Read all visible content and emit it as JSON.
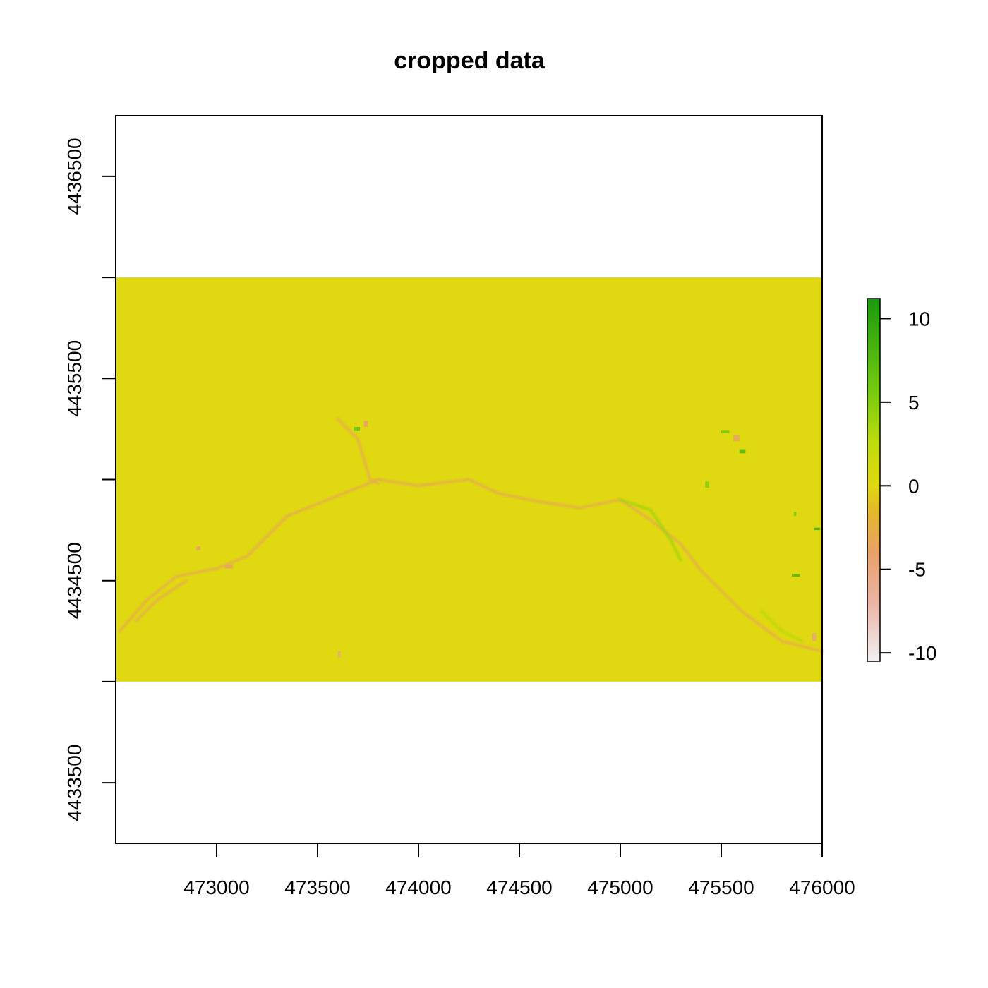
{
  "chart_data": {
    "type": "heatmap",
    "title": "cropped data",
    "xlabel": "",
    "ylabel": "",
    "xlim": [
      472500,
      476000
    ],
    "ylim": [
      4433200,
      4436800
    ],
    "x_ticks": [
      473000,
      473500,
      474000,
      474500,
      475000,
      475500,
      476000
    ],
    "x_tick_labels": [
      "473000",
      "473500",
      "474000",
      "474500",
      "475000",
      "475500",
      "476000"
    ],
    "y_ticks": [
      4433500,
      4434000,
      4434500,
      4435000,
      4435500,
      4436000,
      4436500
    ],
    "y_tick_labels": [
      "4433500",
      "",
      "4434500",
      "",
      "4435500",
      "",
      "4436500"
    ],
    "raster_extent": {
      "x": [
        472500,
        476000
      ],
      "y": [
        4434000,
        4436000
      ]
    },
    "raster_base_value": 0,
    "features": [
      {
        "kind": "channel",
        "value": -3,
        "points": [
          [
            472520,
            4434250
          ],
          [
            472650,
            4434400
          ],
          [
            472800,
            4434520
          ],
          [
            473000,
            4434560
          ],
          [
            473150,
            4434620
          ],
          [
            473350,
            4434820
          ],
          [
            473600,
            4434920
          ],
          [
            473800,
            4435000
          ],
          [
            474000,
            4434970
          ],
          [
            474250,
            4435000
          ],
          [
            474400,
            4434930
          ],
          [
            474600,
            4434890
          ],
          [
            474800,
            4434860
          ],
          [
            475000,
            4434900
          ],
          [
            475150,
            4434800
          ],
          [
            475300,
            4434680
          ],
          [
            475400,
            4434550
          ],
          [
            475600,
            4434350
          ],
          [
            475800,
            4434200
          ],
          [
            476000,
            4434150
          ]
        ]
      },
      {
        "kind": "channel",
        "value": -3,
        "points": [
          [
            473600,
            4435300
          ],
          [
            473700,
            4435200
          ],
          [
            473760,
            4435000
          ],
          [
            473800,
            4434980
          ]
        ]
      },
      {
        "kind": "channel",
        "value": -3,
        "points": [
          [
            472600,
            4434300
          ],
          [
            472700,
            4434400
          ],
          [
            472850,
            4434500
          ]
        ]
      },
      {
        "kind": "channel",
        "value": 4,
        "points": [
          [
            475000,
            4434900
          ],
          [
            475150,
            4434850
          ],
          [
            475250,
            4434700
          ],
          [
            475300,
            4434600
          ]
        ]
      },
      {
        "kind": "channel",
        "value": 3,
        "points": [
          [
            475700,
            4434350
          ],
          [
            475800,
            4434250
          ],
          [
            475900,
            4434200
          ]
        ]
      },
      {
        "kind": "patch",
        "value": 7,
        "x": 473680,
        "y": 4435240,
        "w": 30,
        "h": 20
      },
      {
        "kind": "patch",
        "value": -4,
        "x": 473730,
        "y": 4435260,
        "w": 20,
        "h": 30
      },
      {
        "kind": "patch",
        "value": 6,
        "x": 475500,
        "y": 4435230,
        "w": 40,
        "h": 12
      },
      {
        "kind": "patch",
        "value": 8,
        "x": 475590,
        "y": 4435130,
        "w": 30,
        "h": 20
      },
      {
        "kind": "patch",
        "value": -4,
        "x": 475560,
        "y": 4435190,
        "w": 30,
        "h": 30
      },
      {
        "kind": "patch",
        "value": 5,
        "x": 475420,
        "y": 4434960,
        "w": 20,
        "h": 30
      },
      {
        "kind": "patch",
        "value": 9,
        "x": 475960,
        "y": 4434750,
        "w": 30,
        "h": 12
      },
      {
        "kind": "patch",
        "value": 8,
        "x": 475850,
        "y": 4434520,
        "w": 40,
        "h": 12
      },
      {
        "kind": "patch",
        "value": -5,
        "x": 475950,
        "y": 4434200,
        "w": 20,
        "h": 40
      },
      {
        "kind": "patch",
        "value": 6,
        "x": 475860,
        "y": 4434820,
        "w": 12,
        "h": 20
      },
      {
        "kind": "patch",
        "value": -4,
        "x": 473040,
        "y": 4434560,
        "w": 40,
        "h": 20
      },
      {
        "kind": "patch",
        "value": -4,
        "x": 472900,
        "y": 4434650,
        "w": 20,
        "h": 20
      },
      {
        "kind": "patch",
        "value": -5,
        "x": 473600,
        "y": 4434120,
        "w": 14,
        "h": 30
      }
    ],
    "colorbar": {
      "min": -10.5,
      "max": 11.2,
      "ticks": [
        10,
        5,
        0,
        -5,
        -10
      ],
      "tick_labels": [
        "10",
        "5",
        "0",
        "-5",
        "-10"
      ],
      "stops": [
        {
          "value": -10.5,
          "color": "#f0f0f0"
        },
        {
          "value": -7,
          "color": "#ebb4a5"
        },
        {
          "value": -4,
          "color": "#e8a068"
        },
        {
          "value": -1.5,
          "color": "#e3b82a"
        },
        {
          "value": 0,
          "color": "#e0d810"
        },
        {
          "value": 2.5,
          "color": "#c0dc0e"
        },
        {
          "value": 6,
          "color": "#6ec810"
        },
        {
          "value": 11.2,
          "color": "#19980e"
        }
      ]
    }
  }
}
